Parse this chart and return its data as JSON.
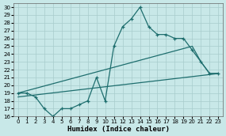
{
  "xlabel": "Humidex (Indice chaleur)",
  "xlim": [
    -0.5,
    23.5
  ],
  "ylim": [
    16,
    30.5
  ],
  "yticks": [
    16,
    17,
    18,
    19,
    20,
    21,
    22,
    23,
    24,
    25,
    26,
    27,
    28,
    29,
    30
  ],
  "xticks": [
    0,
    1,
    2,
    3,
    4,
    5,
    6,
    7,
    8,
    9,
    10,
    11,
    12,
    13,
    14,
    15,
    16,
    17,
    18,
    19,
    20,
    21,
    22,
    23
  ],
  "bg_color": "#c8e8e8",
  "grid_color": "#a8cccc",
  "line_color": "#1e6e6e",
  "line1_x": [
    0,
    1,
    2,
    3,
    4,
    5,
    6,
    7,
    8,
    9,
    10,
    11,
    12,
    13,
    14,
    15,
    16,
    17,
    18,
    19,
    20,
    21,
    22,
    23
  ],
  "line1_y": [
    19,
    19,
    18.5,
    17,
    16,
    17,
    17,
    17.5,
    18,
    21,
    18,
    25,
    27.5,
    28.5,
    30,
    27.5,
    26.5,
    26.5,
    26,
    26,
    24.5,
    23,
    21.5,
    21.5
  ],
  "line2_x": [
    0,
    20,
    21,
    22,
    23
  ],
  "line2_y": [
    19,
    25,
    23,
    21.5,
    21.5
  ],
  "line3_x": [
    0,
    23
  ],
  "line3_y": [
    18.5,
    21.5
  ]
}
